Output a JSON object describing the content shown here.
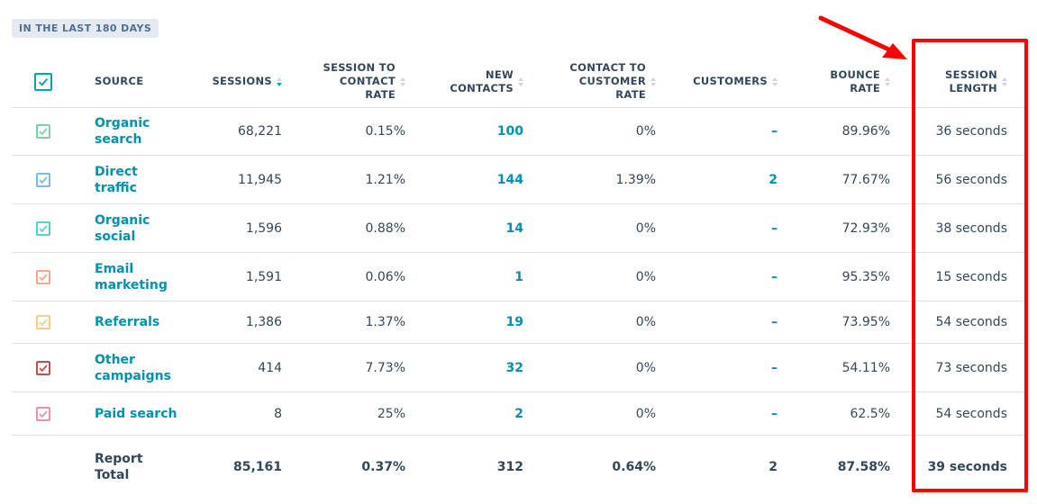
{
  "badge": "IN THE LAST 180 DAYS",
  "headers": {
    "source": "SOURCE",
    "sessions": "SESSIONS",
    "s2c_1": "SESSION TO",
    "s2c_2": "CONTACT",
    "s2c_3": "RATE",
    "newc_1": "NEW",
    "newc_2": "CONTACTS",
    "c2c_1": "CONTACT TO",
    "c2c_2": "CUSTOMER",
    "c2c_3": "RATE",
    "customers": "CUSTOMERS",
    "bounce_1": "BOUNCE",
    "bounce_2": "RATE",
    "len_1": "SESSION",
    "len_2": "LENGTH"
  },
  "rows": [
    {
      "source1": "Organic",
      "source2": "search",
      "sessions": "68,221",
      "s2c": "0.15%",
      "newc": "100",
      "c2c": "0%",
      "customers": "–",
      "bounce": "89.96%",
      "length": "36 seconds",
      "color": "#7fd1a4"
    },
    {
      "source1": "Direct",
      "source2": "traffic",
      "sessions": "11,945",
      "s2c": "1.21%",
      "newc": "144",
      "c2c": "1.39%",
      "customers": "2",
      "bounce": "77.67%",
      "length": "56 seconds",
      "color": "#7fb9ec"
    },
    {
      "source1": "Organic",
      "source2": "social",
      "sessions": "1,596",
      "s2c": "0.88%",
      "newc": "14",
      "c2c": "0%",
      "customers": "–",
      "bounce": "72.93%",
      "length": "38 seconds",
      "color": "#5bcfcf"
    },
    {
      "source1": "Email",
      "source2": "marketing",
      "sessions": "1,591",
      "s2c": "0.06%",
      "newc": "1",
      "c2c": "0%",
      "customers": "–",
      "bounce": "95.35%",
      "length": "15 seconds",
      "color": "#f7a58c"
    },
    {
      "source1": "Referrals",
      "source2": "",
      "sessions": "1,386",
      "s2c": "1.37%",
      "newc": "19",
      "c2c": "0%",
      "customers": "–",
      "bounce": "73.95%",
      "length": "54 seconds",
      "color": "#f5cd86"
    },
    {
      "source1": "Other",
      "source2": "campaigns",
      "sessions": "414",
      "s2c": "7.73%",
      "newc": "32",
      "c2c": "0%",
      "customers": "–",
      "bounce": "54.11%",
      "length": "73 seconds",
      "color": "#c0504d"
    },
    {
      "source1": "Paid search",
      "source2": "",
      "sessions": "8",
      "s2c": "25%",
      "newc": "2",
      "c2c": "0%",
      "customers": "–",
      "bounce": "62.5%",
      "length": "54 seconds",
      "color": "#ea90b1"
    }
  ],
  "total": {
    "label1": "Report",
    "label2": "Total",
    "sessions": "85,161",
    "s2c": "0.37%",
    "newc": "312",
    "c2c": "0.64%",
    "customers": "2",
    "bounce": "87.58%",
    "length": "39 seconds"
  },
  "colors": {
    "accent": "#00a4bd",
    "link": "#0091ae",
    "annotation": "#ff0000"
  }
}
